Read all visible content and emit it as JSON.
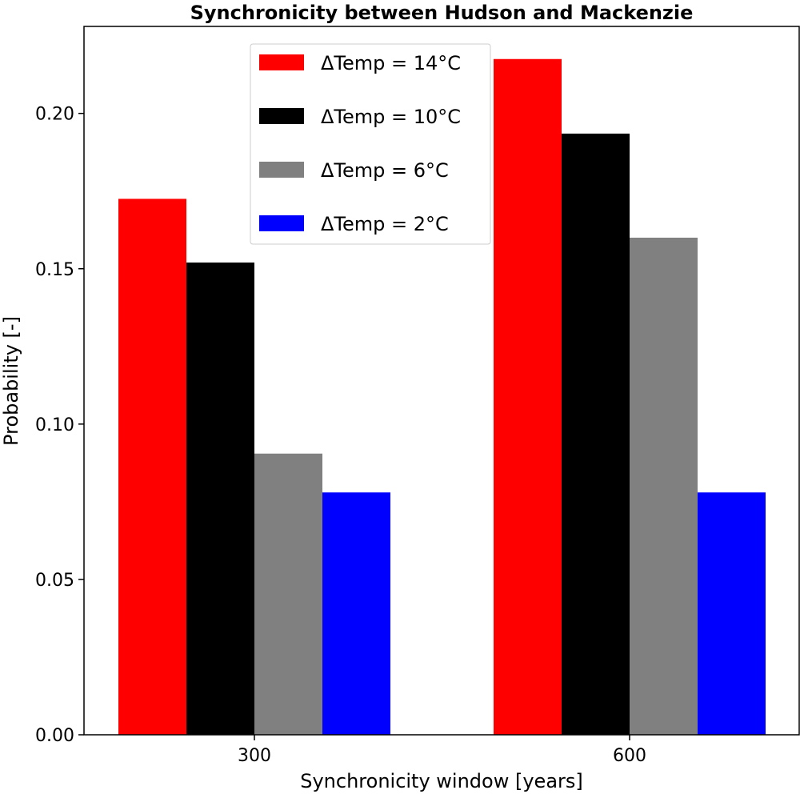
{
  "chart_data": {
    "type": "bar",
    "title": "Synchronicity between Hudson and Mackenzie",
    "xlabel": "Synchronicity window [years]",
    "ylabel": "Probability [-]",
    "categories": [
      "300",
      "600"
    ],
    "series": [
      {
        "name": "ΔTemp = 14°C",
        "color": "#ff0000",
        "values": [
          0.1725,
          0.2175
        ]
      },
      {
        "name": "ΔTemp = 10°C",
        "color": "#000000",
        "values": [
          0.152,
          0.1935
        ]
      },
      {
        "name": "ΔTemp = 6°C",
        "color": "#808080",
        "values": [
          0.0905,
          0.16
        ]
      },
      {
        "name": "ΔTemp = 2°C",
        "color": "#0000ff",
        "values": [
          0.078,
          0.078
        ]
      }
    ],
    "ylim": [
      0,
      0.228
    ],
    "yticks": [
      "0.00",
      "0.05",
      "0.10",
      "0.15",
      "0.20"
    ],
    "grid": false,
    "legend_position": "top-center"
  }
}
